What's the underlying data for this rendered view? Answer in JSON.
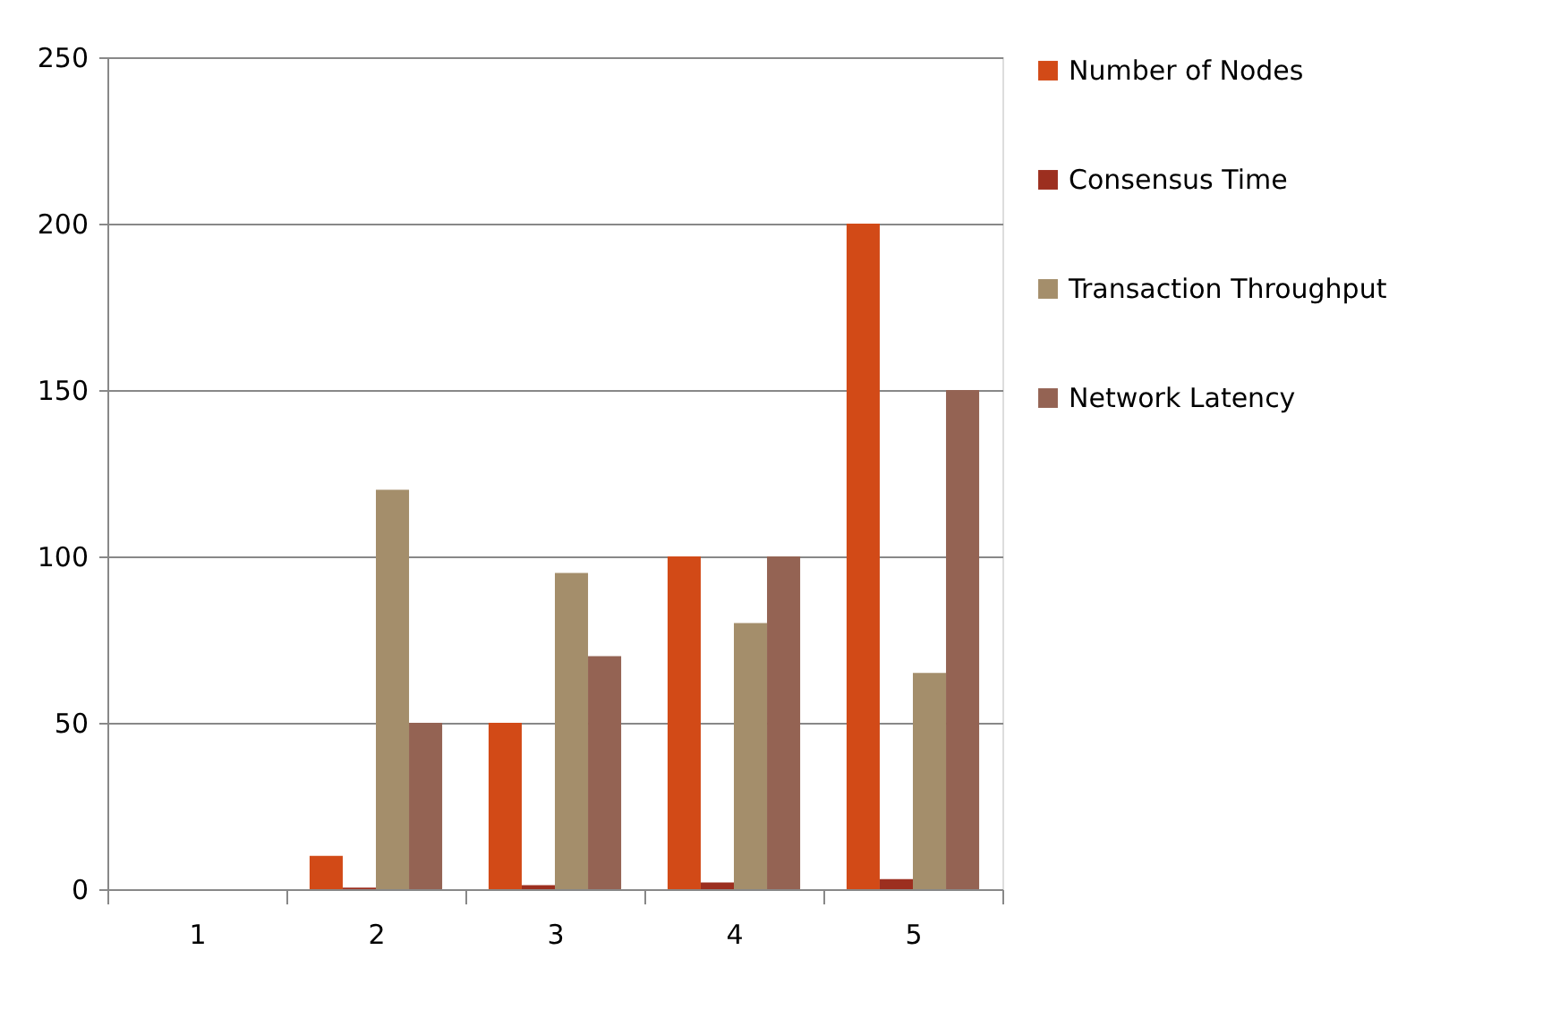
{
  "chart_data": {
    "type": "bar",
    "categories": [
      "1",
      "2",
      "3",
      "4",
      "5"
    ],
    "series": [
      {
        "name": "Number of Nodes",
        "color": "#d24a17",
        "values": [
          null,
          10,
          50,
          100,
          200
        ]
      },
      {
        "name": "Consensus Time",
        "color": "#9c2f1f",
        "values": [
          null,
          0.5,
          1.2,
          2,
          3
        ]
      },
      {
        "name": "Transaction Throughput",
        "color": "#a48e6b",
        "values": [
          null,
          120,
          95,
          80,
          65
        ]
      },
      {
        "name": "Network Latency",
        "color": "#946353",
        "values": [
          null,
          50,
          70,
          100,
          150
        ]
      }
    ],
    "ylim": [
      0,
      250
    ],
    "yticks": [
      0,
      50,
      100,
      150,
      200,
      250
    ],
    "grid": "y",
    "legend": "right"
  }
}
